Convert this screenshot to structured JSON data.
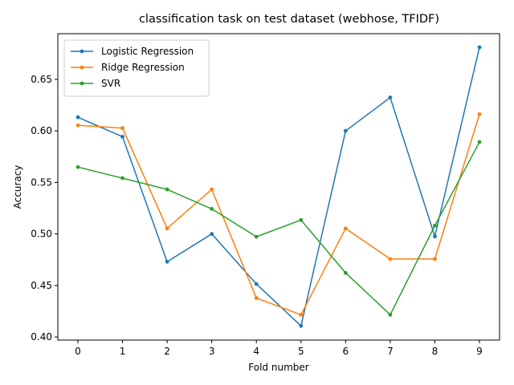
{
  "chart_data": {
    "type": "line",
    "title": "classification task on test dataset (webhose, TFIDF)",
    "xlabel": "Fold number",
    "ylabel": "Accuracy",
    "x": [
      0,
      1,
      2,
      3,
      4,
      5,
      6,
      7,
      8,
      9
    ],
    "xticks": [
      "0",
      "1",
      "2",
      "3",
      "4",
      "5",
      "6",
      "7",
      "8",
      "9"
    ],
    "yticks": [
      "0.40",
      "0.45",
      "0.50",
      "0.55",
      "0.60",
      "0.65"
    ],
    "ytick_values": [
      0.4,
      0.45,
      0.5,
      0.55,
      0.6,
      0.65
    ],
    "xlim": [
      -0.45,
      9.45
    ],
    "ylim": [
      0.397,
      0.6943
    ],
    "grid": false,
    "legend_position": "upper-left",
    "series": [
      {
        "name": "Logistic Regression",
        "color": "#1f77b4",
        "values": [
          0.6132,
          0.5943,
          0.473,
          0.5,
          0.4514,
          0.4108,
          0.6,
          0.6324,
          0.4976,
          0.6811
        ]
      },
      {
        "name": "Ridge Regression",
        "color": "#ff7f0e",
        "values": [
          0.6054,
          0.6027,
          0.5054,
          0.5432,
          0.4378,
          0.4216,
          0.5054,
          0.4757,
          0.4757,
          0.6162
        ]
      },
      {
        "name": "SVR",
        "color": "#2ca02c",
        "values": [
          0.5649,
          0.5541,
          0.5432,
          0.5243,
          0.4973,
          0.5135,
          0.4622,
          0.4216,
          0.5081,
          0.5892
        ]
      }
    ]
  }
}
